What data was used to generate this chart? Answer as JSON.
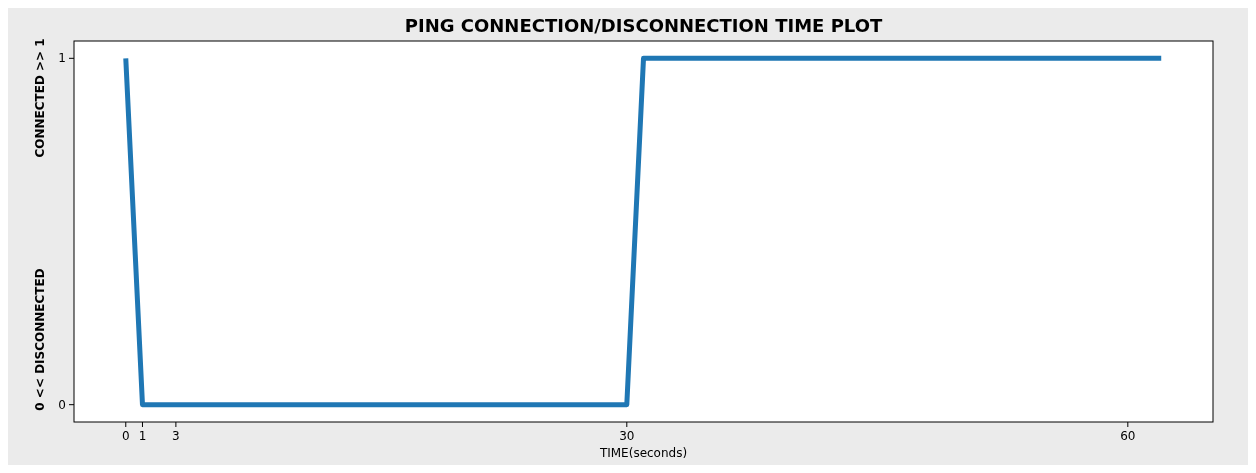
{
  "chart_data": {
    "type": "line",
    "title": "PING CONNECTION/DISCONNECTION TIME PLOT",
    "xlabel": "TIME(seconds)",
    "ylabel": "0 << DISCONNECTED          CONNECTED >> 1",
    "x": [
      0,
      1,
      30,
      31,
      62
    ],
    "series": [
      {
        "color": "#1f77b4",
        "values": [
          1,
          0,
          0,
          1,
          1
        ]
      }
    ],
    "xlim": [
      -3.1,
      65.1
    ],
    "xticks": [
      0,
      1,
      3,
      30,
      60
    ],
    "ylim": [
      -0.05,
      1.05
    ],
    "yticks": [
      0,
      1
    ],
    "grid": false,
    "marker": "none",
    "line_style": "solid"
  }
}
